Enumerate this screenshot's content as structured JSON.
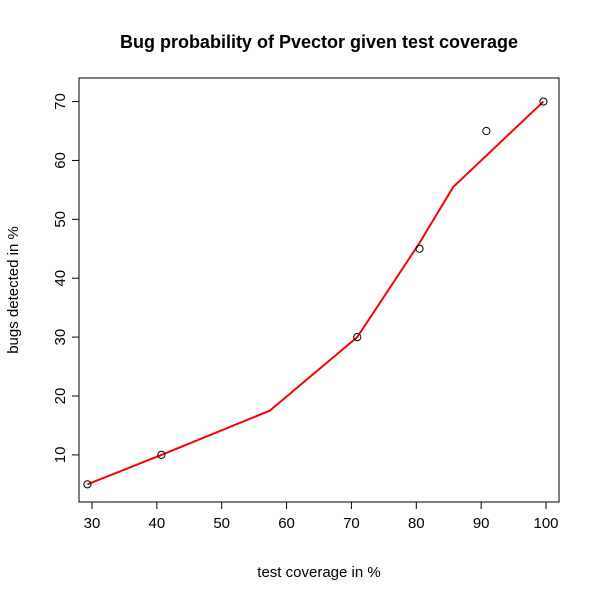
{
  "chart_data": {
    "type": "scatter",
    "title": "Bug probability of Pvector given test coverage",
    "xlabel": "test coverage in %",
    "ylabel": "bugs detected in %",
    "xlim": [
      28,
      102
    ],
    "ylim": [
      2,
      74
    ],
    "x_ticks": [
      30,
      40,
      50,
      60,
      70,
      80,
      90,
      100
    ],
    "y_ticks": [
      10,
      20,
      30,
      40,
      50,
      60,
      70
    ],
    "grid": false,
    "legend": "none",
    "series": [
      {
        "type": "scatter",
        "marker": "open-circle",
        "color": "#000000",
        "points": [
          {
            "x": 29.3,
            "y": 5
          },
          {
            "x": 40.7,
            "y": 10
          },
          {
            "x": 70.9,
            "y": 30
          },
          {
            "x": 80.5,
            "y": 45
          },
          {
            "x": 90.8,
            "y": 65
          },
          {
            "x": 99.6,
            "y": 70
          }
        ]
      },
      {
        "type": "line",
        "color": "#ff0000",
        "points": [
          {
            "x": 29.3,
            "y": 5
          },
          {
            "x": 40.7,
            "y": 10
          },
          {
            "x": 57.4,
            "y": 17.5
          },
          {
            "x": 70.9,
            "y": 30
          },
          {
            "x": 80.5,
            "y": 46
          },
          {
            "x": 85.7,
            "y": 55.5
          },
          {
            "x": 99.6,
            "y": 70
          }
        ]
      }
    ]
  }
}
